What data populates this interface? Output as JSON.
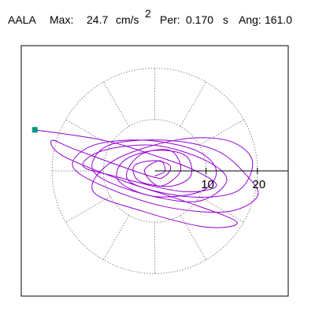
{
  "chart_data": {
    "type": "orbit",
    "station": "AALA",
    "max": {
      "label": "Max:",
      "value": 24.7,
      "unit": "cm/s",
      "unit_sup": "2"
    },
    "period": {
      "label": "Per:",
      "value": {
        "value": 0.17,
        "label": "0.170"
      },
      "unit": "s"
    },
    "angle": {
      "label": "Ang:",
      "value": {
        "value": 161,
        "label": "161.0"
      }
    },
    "xlim": [
      -26,
      26
    ],
    "ylim": [
      -24.5,
      24.5
    ],
    "rticks": [
      10,
      20
    ],
    "spokes": 12,
    "color": "#9400d3",
    "start_color": "#009980",
    "x": [
      -23.35,
      -10,
      0,
      8,
      12,
      5,
      -8,
      -14,
      -10,
      0,
      10,
      14,
      8,
      -4,
      -12,
      -9,
      2,
      12,
      18,
      20,
      14,
      2,
      -10,
      -16,
      -12,
      -2,
      8,
      12,
      9,
      0,
      -7,
      -6,
      0,
      6,
      7,
      3,
      -3,
      -4,
      0,
      3,
      2,
      -1,
      -15,
      -20,
      -18,
      -6,
      6,
      16,
      10,
      -2,
      -12,
      -8,
      4,
      14,
      19,
      16,
      6,
      -5,
      -3,
      3,
      5,
      1,
      -2,
      1,
      2,
      0
    ],
    "y": [
      8.04,
      6,
      3,
      0,
      -3,
      -4,
      -1,
      1,
      4,
      5,
      2,
      -2,
      -6,
      -4,
      0,
      5,
      6,
      4,
      -1,
      -5,
      -8,
      -7,
      -3,
      1,
      5,
      6,
      4,
      0,
      -4,
      -5,
      -2,
      2,
      4,
      3,
      -1,
      -3,
      -2,
      1,
      2,
      1,
      -1,
      -1,
      4,
      6,
      3,
      -2,
      -6,
      -10,
      -11,
      -8,
      -4,
      2,
      6,
      6,
      2,
      -4,
      -5,
      -2,
      3,
      4,
      0,
      -3,
      0,
      2,
      0,
      -1
    ]
  }
}
